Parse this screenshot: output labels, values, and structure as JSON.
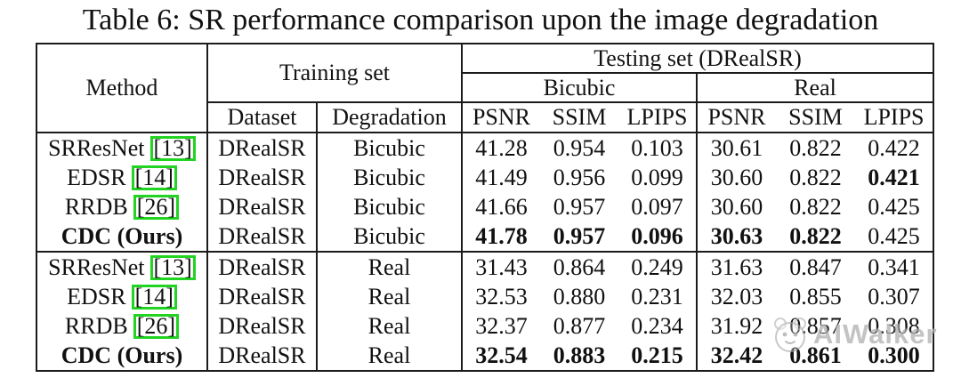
{
  "title": "Table 6: SR performance comparison upon the image degradation",
  "table": {
    "header": {
      "method": "Method",
      "training_set": "Training set",
      "testing_set": "Testing set (DRealSR)",
      "subgroups": [
        "Bicubic",
        "Real"
      ],
      "dataset": "Dataset",
      "degradation": "Degradation",
      "metrics": [
        "PSNR",
        "SSIM",
        "LPIPS"
      ]
    },
    "rows": [
      {
        "method": "SRResNet",
        "cite": "13",
        "method_bold": false,
        "dataset": "DRealSR",
        "degradation": "Bicubic",
        "values": [
          "41.28",
          "0.954",
          "0.103",
          "30.61",
          "0.822",
          "0.422"
        ],
        "bold": [
          false,
          false,
          false,
          false,
          false,
          false
        ]
      },
      {
        "method": "EDSR",
        "cite": "14",
        "method_bold": false,
        "dataset": "DRealSR",
        "degradation": "Bicubic",
        "values": [
          "41.49",
          "0.956",
          "0.099",
          "30.60",
          "0.822",
          "0.421"
        ],
        "bold": [
          false,
          false,
          false,
          false,
          false,
          true
        ]
      },
      {
        "method": "RRDB",
        "cite": "26",
        "method_bold": false,
        "dataset": "DRealSR",
        "degradation": "Bicubic",
        "values": [
          "41.66",
          "0.957",
          "0.097",
          "30.60",
          "0.822",
          "0.425"
        ],
        "bold": [
          false,
          false,
          false,
          false,
          false,
          false
        ]
      },
      {
        "method": "CDC (Ours)",
        "cite": null,
        "method_bold": true,
        "dataset": "DRealSR",
        "degradation": "Bicubic",
        "values": [
          "41.78",
          "0.957",
          "0.096",
          "30.63",
          "0.822",
          "0.425"
        ],
        "bold": [
          true,
          true,
          true,
          true,
          true,
          false
        ]
      },
      {
        "method": "SRResNet",
        "cite": "13",
        "method_bold": false,
        "dataset": "DRealSR",
        "degradation": "Real",
        "values": [
          "31.43",
          "0.864",
          "0.249",
          "31.63",
          "0.847",
          "0.341"
        ],
        "bold": [
          false,
          false,
          false,
          false,
          false,
          false
        ]
      },
      {
        "method": "EDSR",
        "cite": "14",
        "method_bold": false,
        "dataset": "DRealSR",
        "degradation": "Real",
        "values": [
          "32.53",
          "0.880",
          "0.231",
          "32.03",
          "0.855",
          "0.307"
        ],
        "bold": [
          false,
          false,
          false,
          false,
          false,
          false
        ]
      },
      {
        "method": "RRDB",
        "cite": "26",
        "method_bold": false,
        "dataset": "DRealSR",
        "degradation": "Real",
        "values": [
          "32.37",
          "0.877",
          "0.234",
          "31.92",
          "0.857",
          "0.308"
        ],
        "bold": [
          false,
          false,
          false,
          false,
          false,
          false
        ]
      },
      {
        "method": "CDC (Ours)",
        "cite": null,
        "method_bold": true,
        "dataset": "DRealSR",
        "degradation": "Real",
        "values": [
          "32.54",
          "0.883",
          "0.215",
          "32.42",
          "0.861",
          "0.300"
        ],
        "bold": [
          true,
          true,
          true,
          true,
          true,
          true
        ]
      }
    ]
  },
  "watermark": {
    "text": "AIWalker"
  },
  "colors": {
    "citation_box": "#22d422",
    "border": "#1b1b1b",
    "text": "#111111",
    "watermark": "#b0b0b0"
  }
}
